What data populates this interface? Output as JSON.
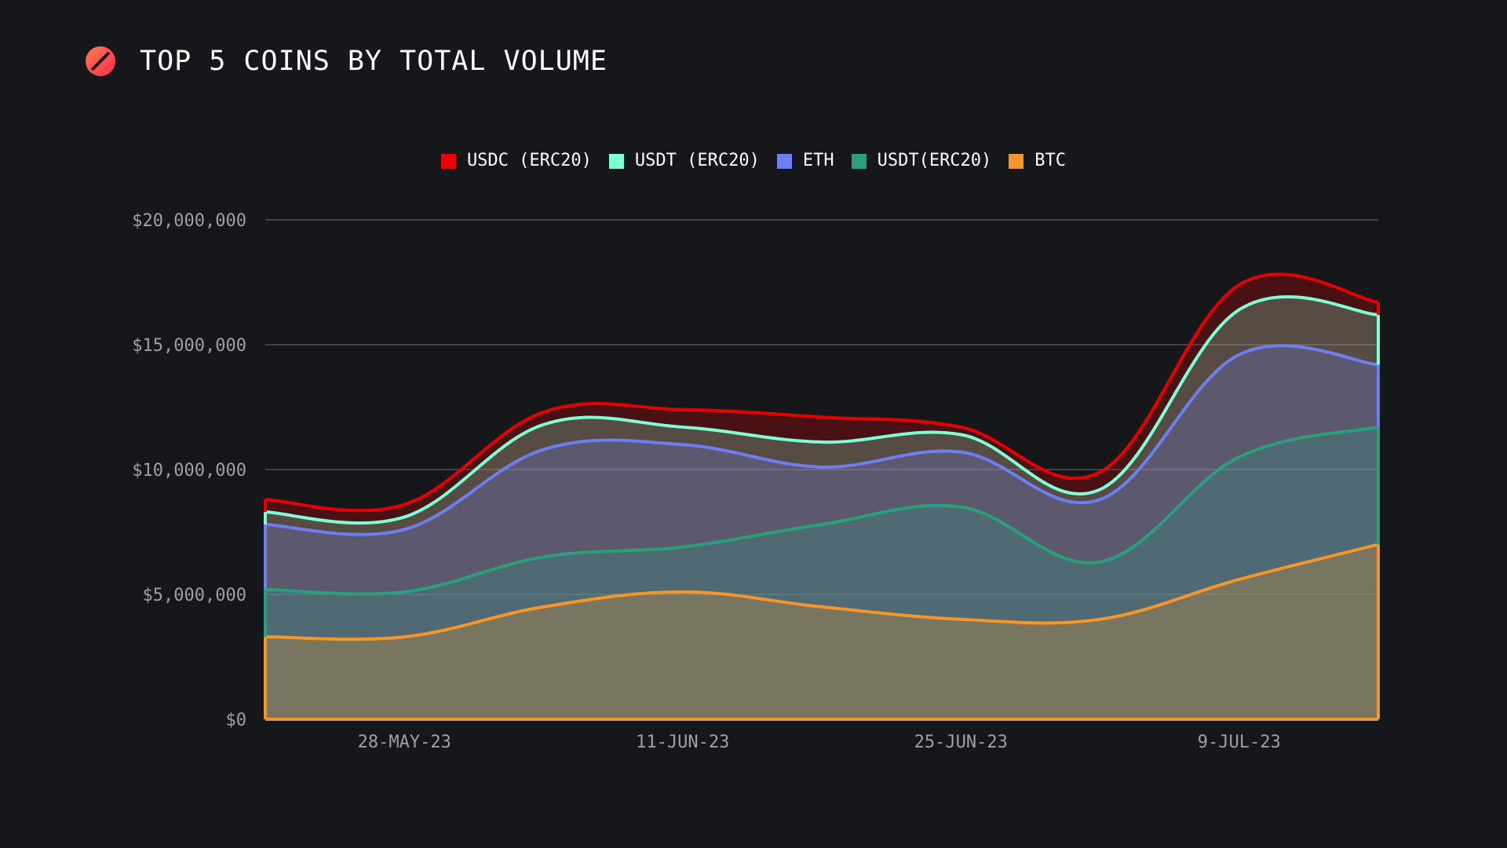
{
  "header": {
    "title": "TOP 5 COINS BY TOTAL VOLUME",
    "logo_icon": "slashed-circle-logo"
  },
  "legend": {
    "items": [
      {
        "label": "USDC (ERC20)",
        "color": "#e80000"
      },
      {
        "label": "USDT (ERC20)",
        "color": "#7fffd4"
      },
      {
        "label": "ETH",
        "color": "#6d7ff0"
      },
      {
        "label": "USDT(ERC20)",
        "color": "#28a07a"
      },
      {
        "label": "BTC",
        "color": "#f5962a"
      }
    ]
  },
  "chart_data": {
    "type": "area",
    "stacked": true,
    "title": "TOP 5 COINS BY TOTAL VOLUME",
    "xlabel": "",
    "ylabel": "",
    "ylim": [
      0,
      20000000
    ],
    "yticks": [
      0,
      5000000,
      10000000,
      15000000,
      20000000
    ],
    "ytick_labels": [
      "$0",
      "$5,000,000",
      "$10,000,000",
      "$15,000,000",
      "$20,000,000"
    ],
    "x_tick_labels": [
      "28-MAY-23",
      "11-JUN-23",
      "25-JUN-23",
      "9-JUL-23"
    ],
    "x": [
      "21-MAY-23",
      "28-MAY-23",
      "4-JUN-23",
      "11-JUN-23",
      "18-JUN-23",
      "25-JUN-23",
      "2-JUL-23",
      "9-JUL-23",
      "16-JUL-23"
    ],
    "grid": true,
    "legend_position": "top-center",
    "series": [
      {
        "name": "BTC",
        "color": "#f5962a",
        "values": [
          3300000,
          3300000,
          4500000,
          5100000,
          4500000,
          4000000,
          4000000,
          5600000,
          7000000
        ]
      },
      {
        "name": "USDT(ERC20)",
        "color": "#28a07a",
        "values": [
          1900000,
          1800000,
          2000000,
          1800000,
          3300000,
          4500000,
          2300000,
          4900000,
          4700000
        ]
      },
      {
        "name": "ETH",
        "color": "#6d7ff0",
        "values": [
          2600000,
          2500000,
          4300000,
          4100000,
          2300000,
          2200000,
          2500000,
          4100000,
          2500000
        ]
      },
      {
        "name": "USDT (ERC20)",
        "color": "#7fffd4",
        "values": [
          500000,
          500000,
          1000000,
          700000,
          1000000,
          700000,
          400000,
          1800000,
          2000000
        ]
      },
      {
        "name": "USDC (ERC20)",
        "color": "#e80000",
        "values": [
          500000,
          500000,
          500000,
          700000,
          1000000,
          300000,
          700000,
          1000000,
          500000
        ]
      }
    ]
  }
}
